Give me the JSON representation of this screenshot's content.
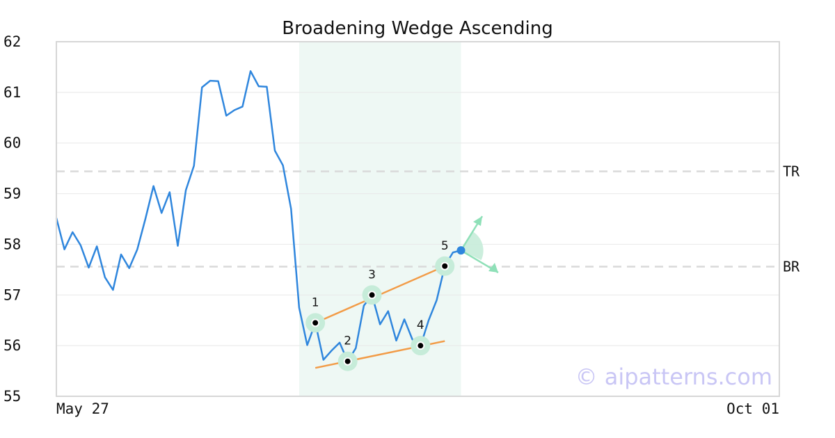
{
  "chart_data": {
    "type": "line",
    "title": "Broadening Wedge Ascending",
    "ylim": [
      55,
      62
    ],
    "y_ticks": [
      "55",
      "56",
      "57",
      "58",
      "59",
      "60",
      "61",
      "62"
    ],
    "x_tick_labels": [
      "May 27",
      "Oct 01"
    ],
    "grid": true,
    "price": [
      58.52,
      57.9,
      58.24,
      57.98,
      57.54,
      57.96,
      57.35,
      57.1,
      57.8,
      57.53,
      57.9,
      58.5,
      59.15,
      58.62,
      59.03,
      57.97,
      59.07,
      59.55,
      61.1,
      61.23,
      61.22,
      60.54,
      60.65,
      60.72,
      61.42,
      61.12,
      61.11,
      59.85,
      59.56,
      58.7,
      56.75,
      56.01,
      56.45,
      55.72,
      55.9,
      56.06,
      55.69,
      55.95,
      56.79,
      57.0,
      56.42,
      56.68,
      56.1,
      56.52,
      56.12,
      56.0,
      56.5,
      56.9,
      57.57,
      57.84,
      57.88
    ],
    "reference_lines": [
      {
        "label": "TR",
        "value": 59.44
      },
      {
        "label": "BR",
        "value": 57.56
      }
    ],
    "highlight_range": [
      30,
      50
    ],
    "pattern_points": [
      {
        "label": "1",
        "index": 32,
        "value": 56.45
      },
      {
        "label": "2",
        "index": 36,
        "value": 55.69
      },
      {
        "label": "3",
        "index": 39,
        "value": 57.0
      },
      {
        "label": "4",
        "index": 45,
        "value": 56.0
      },
      {
        "label": "5",
        "index": 48,
        "value": 57.57
      }
    ],
    "upper_trendline": {
      "from": [
        32,
        56.45
      ],
      "to": [
        48,
        57.57
      ]
    },
    "lower_trendline": {
      "from": [
        32,
        55.56
      ],
      "to": [
        48,
        56.09
      ]
    },
    "current_point": {
      "index": 50,
      "value": 57.88
    },
    "colors": {
      "price_line": "#2f86dd",
      "trendline": "#f29b46",
      "highlight": "#eef8f4",
      "marker_halo": "#c6ecd9",
      "arrow": "#8fe0b8",
      "reference_line": "#d9d9d9",
      "grid": "#e8e8e8",
      "axis": "#d6d6d6"
    },
    "watermark": "© aipatterns.com"
  }
}
